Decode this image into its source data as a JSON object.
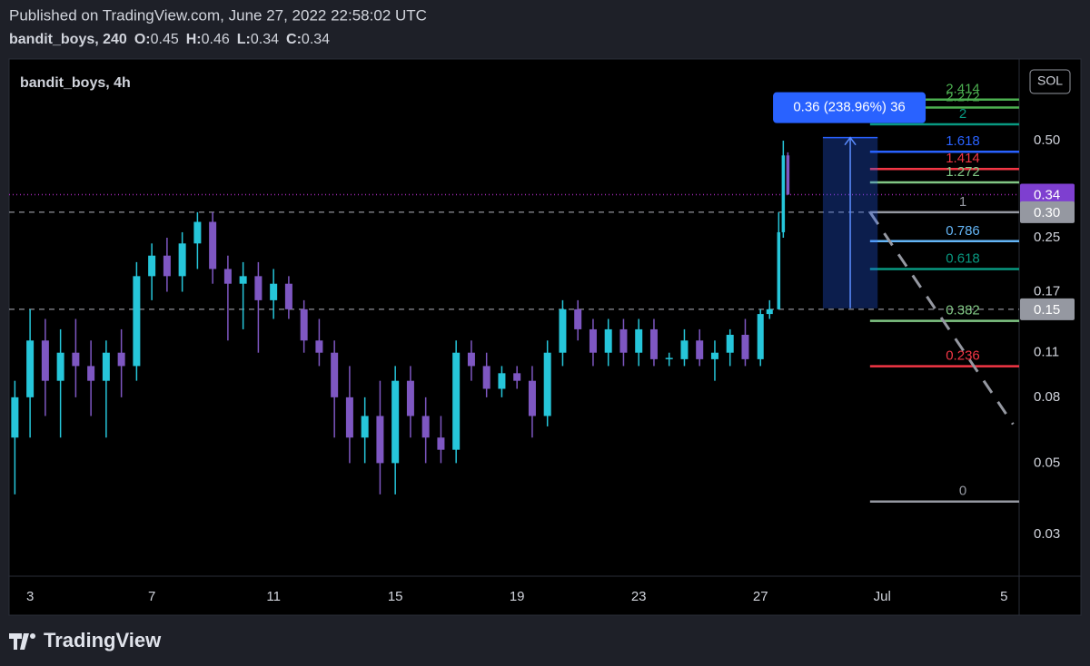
{
  "header": {
    "published": "Published on TradingView.com, June 27, 2022 22:58:02 UTC",
    "symbol": "bandit_boys, 240",
    "ohlc": [
      {
        "key": "O:",
        "value": 0.45
      },
      {
        "key": "H:",
        "value": 0.46
      },
      {
        "key": "L:",
        "value": 0.34
      },
      {
        "key": "C:",
        "value": 0.34
      }
    ]
  },
  "chart_data": {
    "type": "candlestick",
    "title": "bandit_boys, 4h",
    "symbol_button": "SOL",
    "log_scale": true,
    "up_color": "#26c6da",
    "down_color": "#7e57c2",
    "xlim": [
      2.31,
      35.5
    ],
    "xticks": [
      3,
      7,
      11,
      15,
      19,
      23,
      27,
      {
        "value": 31,
        "label": "Jul"
      },
      {
        "value": 35,
        "label": "5"
      }
    ],
    "ylim": [
      0.0223,
      0.896
    ],
    "yticks": [
      {
        "value": 0.5,
        "label": "0.50"
      },
      0.25,
      0.17,
      0.11,
      0.08,
      0.05,
      0.03
    ],
    "price_labels": [
      {
        "value": 0.34,
        "label": "0.34",
        "color": "#7e3fd0"
      },
      {
        "value": 0.3,
        "label": "0.30",
        "color": "#9598a1"
      },
      {
        "value": 0.15,
        "label": "0.15",
        "color": "#9598a1"
      }
    ],
    "horizontal_lines": [
      0.3,
      0.15
    ],
    "current_price_line": 0.34,
    "candles": [
      [
        2.5,
        0.06,
        0.09,
        0.04,
        0.08
      ],
      [
        3.0,
        0.08,
        0.15,
        0.06,
        0.12
      ],
      [
        3.5,
        0.12,
        0.14,
        0.07,
        0.09
      ],
      [
        4.0,
        0.09,
        0.13,
        0.06,
        0.11
      ],
      [
        4.5,
        0.11,
        0.14,
        0.08,
        0.1
      ],
      [
        5.0,
        0.1,
        0.12,
        0.07,
        0.09
      ],
      [
        5.5,
        0.09,
        0.12,
        0.06,
        0.11
      ],
      [
        6.0,
        0.11,
        0.13,
        0.08,
        0.1
      ],
      [
        6.5,
        0.1,
        0.21,
        0.09,
        0.19
      ],
      [
        7.0,
        0.19,
        0.24,
        0.16,
        0.22
      ],
      [
        7.5,
        0.22,
        0.25,
        0.17,
        0.19
      ],
      [
        8.0,
        0.19,
        0.26,
        0.17,
        0.24
      ],
      [
        8.5,
        0.24,
        0.3,
        0.2,
        0.28
      ],
      [
        9.0,
        0.28,
        0.3,
        0.18,
        0.2
      ],
      [
        9.5,
        0.2,
        0.22,
        0.12,
        0.18
      ],
      [
        10.0,
        0.18,
        0.21,
        0.13,
        0.19
      ],
      [
        10.5,
        0.19,
        0.21,
        0.11,
        0.16
      ],
      [
        11.0,
        0.16,
        0.2,
        0.14,
        0.18
      ],
      [
        11.5,
        0.18,
        0.19,
        0.14,
        0.15
      ],
      [
        12.0,
        0.15,
        0.16,
        0.11,
        0.12
      ],
      [
        12.5,
        0.12,
        0.14,
        0.1,
        0.11
      ],
      [
        13.0,
        0.11,
        0.12,
        0.06,
        0.08
      ],
      [
        13.5,
        0.08,
        0.1,
        0.05,
        0.06
      ],
      [
        14.0,
        0.06,
        0.08,
        0.05,
        0.07
      ],
      [
        14.5,
        0.07,
        0.09,
        0.04,
        0.05
      ],
      [
        15.0,
        0.05,
        0.1,
        0.04,
        0.09
      ],
      [
        15.5,
        0.09,
        0.1,
        0.06,
        0.07
      ],
      [
        16.0,
        0.07,
        0.08,
        0.05,
        0.06
      ],
      [
        16.5,
        0.06,
        0.07,
        0.05,
        0.055
      ],
      [
        17.0,
        0.055,
        0.12,
        0.05,
        0.11
      ],
      [
        17.5,
        0.11,
        0.12,
        0.09,
        0.1
      ],
      [
        18.0,
        0.1,
        0.11,
        0.08,
        0.085
      ],
      [
        18.5,
        0.085,
        0.1,
        0.08,
        0.095
      ],
      [
        19.0,
        0.095,
        0.1,
        0.085,
        0.09
      ],
      [
        19.5,
        0.09,
        0.1,
        0.06,
        0.07
      ],
      [
        20.0,
        0.07,
        0.12,
        0.065,
        0.11
      ],
      [
        20.5,
        0.11,
        0.16,
        0.1,
        0.15
      ],
      [
        21.0,
        0.15,
        0.16,
        0.12,
        0.13
      ],
      [
        21.5,
        0.13,
        0.14,
        0.1,
        0.11
      ],
      [
        22.0,
        0.11,
        0.14,
        0.1,
        0.13
      ],
      [
        22.5,
        0.13,
        0.14,
        0.1,
        0.11
      ],
      [
        23.0,
        0.11,
        0.14,
        0.1,
        0.13
      ],
      [
        23.5,
        0.13,
        0.14,
        0.1,
        0.105
      ],
      [
        24.0,
        0.105,
        0.11,
        0.1,
        0.106
      ],
      [
        24.5,
        0.105,
        0.13,
        0.1,
        0.12
      ],
      [
        25.0,
        0.12,
        0.13,
        0.1,
        0.105
      ],
      [
        25.5,
        0.105,
        0.12,
        0.09,
        0.11
      ],
      [
        26.0,
        0.11,
        0.13,
        0.1,
        0.125
      ],
      [
        26.5,
        0.125,
        0.14,
        0.1,
        0.105
      ],
      [
        27.0,
        0.105,
        0.15,
        0.1,
        0.145
      ],
      [
        27.3,
        0.145,
        0.16,
        0.14,
        0.15
      ],
      [
        27.6,
        0.15,
        0.3,
        0.15,
        0.26
      ],
      [
        27.75,
        0.26,
        0.5,
        0.25,
        0.45
      ],
      [
        27.9,
        0.45,
        0.46,
        0.34,
        0.34
      ]
    ],
    "measure": {
      "label": "0.36 (238.96%) 36",
      "from": 0.151,
      "to": 0.511,
      "x_start": 29.05,
      "x_end": 30.85,
      "color": "#2962ff"
    },
    "trend_line": {
      "x": [
        30.6,
        35.3
      ],
      "y": [
        0.3,
        0.066
      ],
      "color": "#9598a1"
    },
    "fib": {
      "low": 0.038,
      "high": 0.3,
      "x_start": 30.6,
      "x_end": 35.5,
      "levels": [
        0,
        0.236,
        0.382,
        0.618,
        0.786,
        1,
        1.272,
        1.414,
        1.618,
        2,
        2.272,
        2.414
      ],
      "colors": [
        "#9598a1",
        "#f23645",
        "#81c784",
        "#089981",
        "#64b5f6",
        "#9598a1",
        "#81c784",
        "#f23645",
        "#2962ff",
        "#089981",
        "#4caf50",
        "#4caf50"
      ]
    }
  },
  "footer": {
    "brand": "TradingView"
  }
}
